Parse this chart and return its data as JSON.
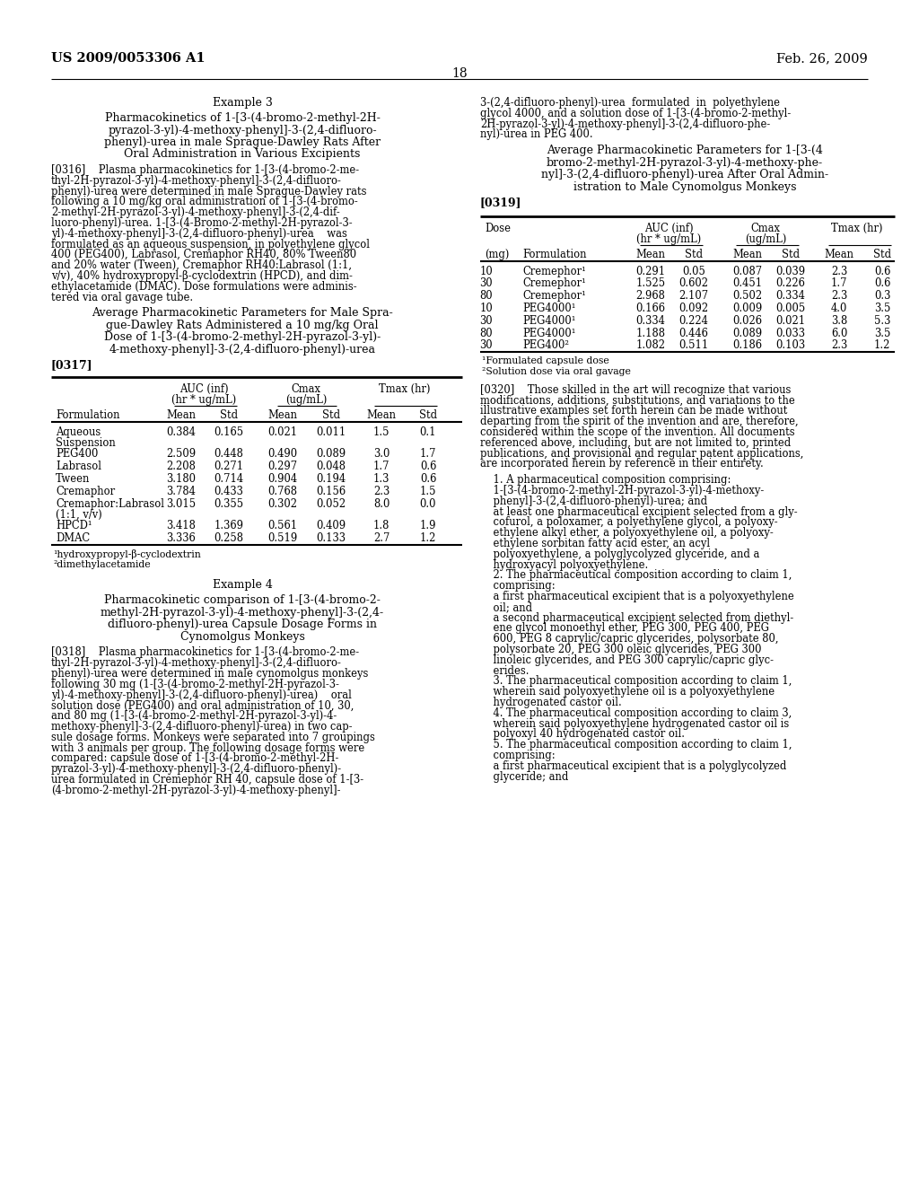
{
  "background_color": "#ffffff",
  "header_left": "US 2009/0053306 A1",
  "header_right": "Feb. 26, 2009",
  "page_number": "18",
  "table1_rows": [
    [
      "Aqueous\nSuspension",
      "0.384",
      "0.165",
      "0.021",
      "0.011",
      "1.5",
      "0.1"
    ],
    [
      "PEG400",
      "2.509",
      "0.448",
      "0.490",
      "0.089",
      "3.0",
      "1.7"
    ],
    [
      "Labrasol",
      "2.208",
      "0.271",
      "0.297",
      "0.048",
      "1.7",
      "0.6"
    ],
    [
      "Tween",
      "3.180",
      "0.714",
      "0.904",
      "0.194",
      "1.3",
      "0.6"
    ],
    [
      "Cremaphor",
      "3.784",
      "0.433",
      "0.768",
      "0.156",
      "2.3",
      "1.5"
    ],
    [
      "Cremaphor:Labrasol\n(1:1, v/v)",
      "3.015",
      "0.355",
      "0.302",
      "0.052",
      "8.0",
      "0.0"
    ],
    [
      "HPCD¹",
      "3.418",
      "1.369",
      "0.561",
      "0.409",
      "1.8",
      "1.9"
    ],
    [
      "DMAC",
      "3.336",
      "0.258",
      "0.519",
      "0.133",
      "2.7",
      "1.2"
    ]
  ],
  "table1_footnotes": [
    "¹hydroxypropyl-β-cyclodextrin",
    "²dimethylacetamide"
  ],
  "table2_rows": [
    [
      "10",
      "Cremephor¹",
      "0.291",
      "0.05",
      "0.087",
      "0.039",
      "2.3",
      "0.6"
    ],
    [
      "30",
      "Cremephor¹",
      "1.525",
      "0.602",
      "0.451",
      "0.226",
      "1.7",
      "0.6"
    ],
    [
      "80",
      "Cremephor¹",
      "2.968",
      "2.107",
      "0.502",
      "0.334",
      "2.3",
      "0.3"
    ],
    [
      "10",
      "PEG4000¹",
      "0.166",
      "0.092",
      "0.009",
      "0.005",
      "4.0",
      "3.5"
    ],
    [
      "30",
      "PEG4000¹",
      "0.334",
      "0.224",
      "0.026",
      "0.021",
      "3.8",
      "5.3"
    ],
    [
      "80",
      "PEG4000¹",
      "1.188",
      "0.446",
      "0.089",
      "0.033",
      "6.0",
      "3.5"
    ],
    [
      "30",
      "PEG400²",
      "1.082",
      "0.511",
      "0.186",
      "0.103",
      "2.3",
      "1.2"
    ]
  ],
  "table2_footnotes": [
    "¹Formulated capsule dose",
    "²Solution dose via oral gavage"
  ]
}
